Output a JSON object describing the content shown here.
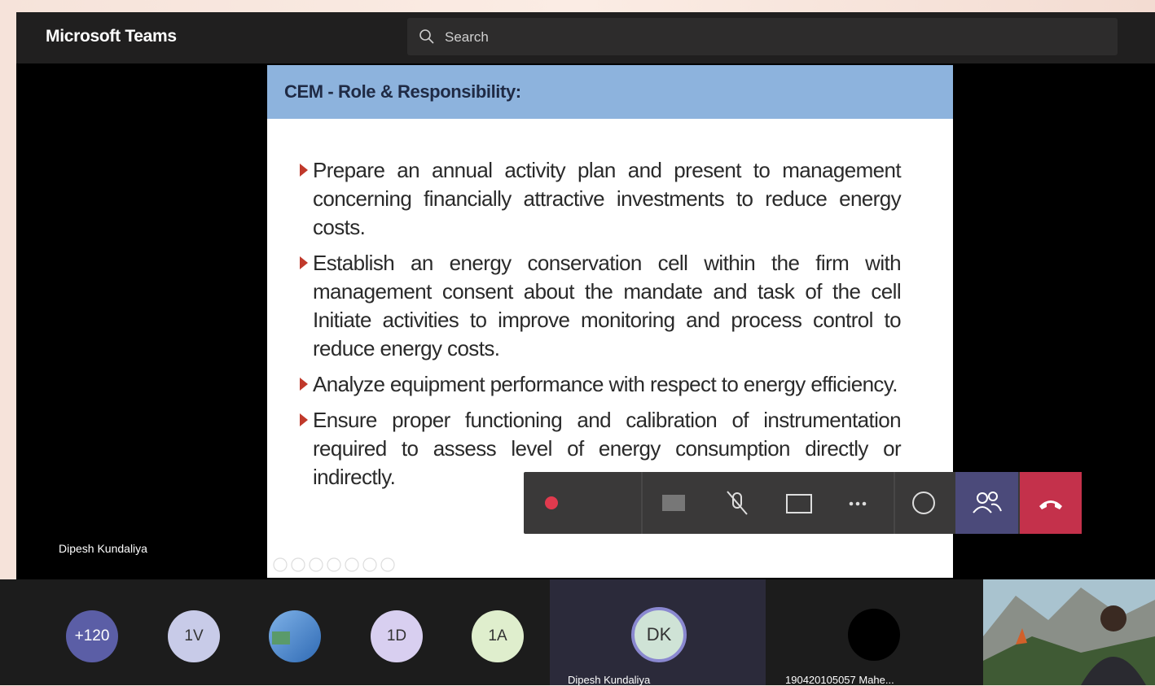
{
  "app": {
    "title": "Microsoft Teams",
    "search_placeholder": "Search"
  },
  "slide": {
    "title": "CEM - Role & Responsibility:",
    "bullets": [
      "Prepare an annual activity plan and present to management concerning financially attractive investments to reduce energy costs.",
      "Establish an energy conservation cell within the firm with management consent about the mandate and task of the cell Initiate activities to improve monitoring and process control to reduce energy costs.",
      "Analyze equipment performance with respect to energy efficiency.",
      "Ensure proper functioning and calibration of instrumentation required to assess level of energy consumption directly or indirectly."
    ]
  },
  "presenter_label": "Dipesh Kundaliya",
  "participants": [
    "+120",
    "1V",
    "1D",
    "1A"
  ],
  "tiles": [
    {
      "initials": "DK",
      "name": "Dipesh Kundaliya"
    },
    {
      "name": "190420105057 Mahe..."
    }
  ]
}
